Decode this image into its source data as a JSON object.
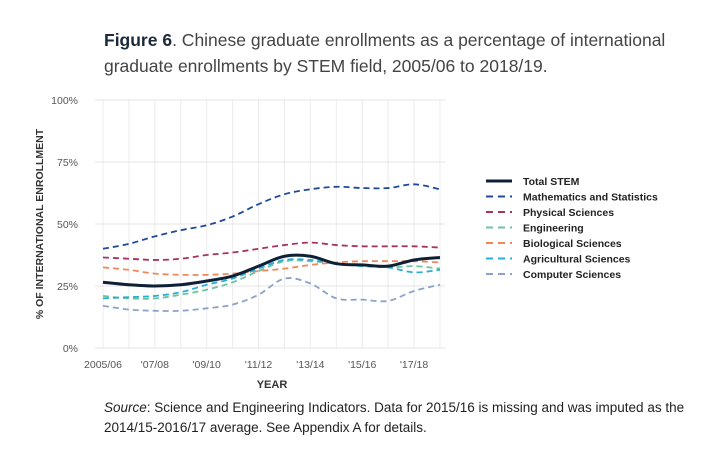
{
  "figure": {
    "label": "Figure 6",
    "title": ". Chinese graduate enrollments as a percentage of international graduate enrollments by STEM field, 2005/06 to 2018/19."
  },
  "source": {
    "label": "Source",
    "text": ": Science and Engineering Indicators. Data for 2015/16 is missing and was imputed as the 2014/15-2016/17 average. See Appendix A for details."
  },
  "chart_data": {
    "type": "line",
    "title": "",
    "xlabel": "YEAR",
    "ylabel": "% OF INTERNATIONAL ENROLLMENT",
    "x": [
      "2005/06",
      "2006/07",
      "2007/08",
      "2008/09",
      "2009/10",
      "2010/11",
      "2011/12",
      "2012/13",
      "2013/14",
      "2014/15",
      "2015/16",
      "2016/17",
      "2017/18",
      "2018/19"
    ],
    "x_tick_labels": [
      "2005/06",
      "'07/08",
      "'09/10",
      "'11/12",
      "'13/14",
      "'15/16",
      "'17/18"
    ],
    "x_tick_index": [
      0,
      2,
      4,
      6,
      8,
      10,
      12
    ],
    "y_ticks": [
      0,
      25,
      50,
      75,
      100
    ],
    "y_tick_labels": [
      "0%",
      "25%",
      "50%",
      "75%",
      "100%"
    ],
    "ylim": [
      0,
      100
    ],
    "grid": true,
    "legend_position": "right",
    "series": [
      {
        "name": "Total STEM",
        "color": "#0d2035",
        "style": "solid",
        "values": [
          26.5,
          25.5,
          25,
          25.5,
          27,
          29,
          33,
          37,
          37,
          34,
          33.5,
          33,
          35.5,
          36.5
        ]
      },
      {
        "name": "Mathematics and Statistics",
        "color": "#1f4a9c",
        "style": "dashed",
        "values": [
          40,
          42,
          45,
          47.5,
          49.5,
          53,
          58,
          62,
          64,
          65,
          64.5,
          64.5,
          66,
          64
        ]
      },
      {
        "name": "Physical Sciences",
        "color": "#a8325e",
        "style": "dashed",
        "values": [
          36.5,
          36,
          35.5,
          36,
          37.5,
          38.5,
          40,
          41.5,
          42.5,
          41.5,
          41,
          41,
          41,
          40.5
        ]
      },
      {
        "name": "Engineering",
        "color": "#6cc3a0",
        "style": "dashed",
        "values": [
          21,
          20,
          20,
          21.5,
          23.5,
          26.5,
          31,
          35,
          35,
          34,
          33.5,
          32.5,
          33,
          32
        ]
      },
      {
        "name": "Biological Sciences",
        "color": "#f0895a",
        "style": "dashed",
        "values": [
          32.5,
          31.5,
          30,
          29.5,
          29.5,
          30,
          31,
          32,
          33.5,
          34.5,
          35,
          35,
          35,
          34.5
        ]
      },
      {
        "name": "Agricultural Sciences",
        "color": "#2aaed6",
        "style": "dashed",
        "values": [
          20,
          20.5,
          21,
          22.5,
          25.5,
          28,
          32,
          35.5,
          35.5,
          34,
          33,
          32.5,
          30.5,
          31.5
        ]
      },
      {
        "name": "Computer Sciences",
        "color": "#8ba3c8",
        "style": "dashed",
        "values": [
          17,
          15.5,
          15,
          15,
          16,
          17.5,
          21.5,
          28,
          26,
          20,
          19.5,
          19,
          23,
          25.5
        ]
      }
    ]
  }
}
